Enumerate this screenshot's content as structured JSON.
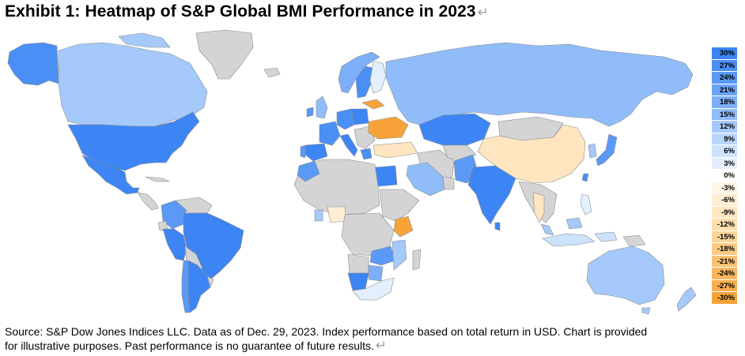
{
  "title": "Exhibit 1: Heatmap of S&P Global BMI Performance in 2023",
  "paragraph_mark": "↵",
  "legend": {
    "stops": [
      {
        "label": "30%",
        "color": "#3d85f4"
      },
      {
        "label": "27%",
        "color": "#4a8ff5"
      },
      {
        "label": "24%",
        "color": "#5a99f6"
      },
      {
        "label": "21%",
        "color": "#6ba4f7"
      },
      {
        "label": "18%",
        "color": "#7daff8"
      },
      {
        "label": "15%",
        "color": "#90bcf9"
      },
      {
        "label": "12%",
        "color": "#a4c9fa"
      },
      {
        "label": "9%",
        "color": "#b9d6fb"
      },
      {
        "label": "6%",
        "color": "#cde3fc"
      },
      {
        "label": "3%",
        "color": "#e3effd"
      },
      {
        "label": "0%",
        "color": "#ffffff"
      },
      {
        "label": "-3%",
        "color": "#fff5e6"
      },
      {
        "label": "-6%",
        "color": "#ffeed4"
      },
      {
        "label": "-9%",
        "color": "#ffe6c1"
      },
      {
        "label": "-12%",
        "color": "#ffdfad"
      },
      {
        "label": "-15%",
        "color": "#fdd599"
      },
      {
        "label": "-18%",
        "color": "#fccb84"
      },
      {
        "label": "-21%",
        "color": "#fbc171"
      },
      {
        "label": "-24%",
        "color": "#fab75e"
      },
      {
        "label": "-27%",
        "color": "#f9ad4c"
      },
      {
        "label": "-30%",
        "color": "#f8a33a"
      }
    ]
  },
  "colors": {
    "no_data": "#d4d4d4",
    "border": "#8c8c8c",
    "ocean": "#ffffff"
  },
  "footer": {
    "line1": "Source: S&P Dow Jones Indices LLC. Data as of Dec. 29, 2023. Index performance based on total return in USD. Chart is provided",
    "line2": "for illustrative purposes. Past performance is no guarantee of future results."
  }
}
